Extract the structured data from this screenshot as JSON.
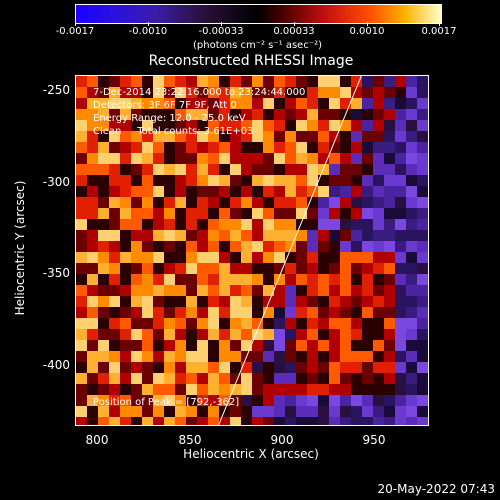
{
  "colorbar": {
    "ticks": [
      "-0.0017",
      "-0.0010",
      "-0.00033",
      "0.00033",
      "0.0010",
      "0.0017"
    ],
    "units": "(photons cm⁻² s⁻¹ asec⁻²)"
  },
  "chart_data": {
    "type": "heatmap",
    "title": "Reconstructed RHESSI Image",
    "xlabel": "Heliocentric X (arcsec)",
    "ylabel": "Heliocentric Y (arcsec)",
    "xlim": [
      790,
      980
    ],
    "ylim": [
      -433,
      -243
    ],
    "x_ticks": [
      "800",
      "850",
      "900",
      "950"
    ],
    "y_ticks": [
      "-250",
      "-300",
      "-350",
      "-400"
    ],
    "colorbar_range": [
      -0.0017,
      0.0017
    ],
    "limb_line": {
      "x": [
        867,
        944
      ],
      "y": [
        -433,
        -243
      ]
    },
    "annotations": {
      "time": "7-Dec-2014 23:22:16.000 to 23:24:44.000",
      "detectors": "Detectors: 3F 6F 7F 9F, Att 0",
      "energy": "Energy Range: 12.0 - 25.0 keV",
      "method": "Clean     Total counts: 3.61E+03",
      "peak": "Position of Peak = [792,-362]"
    }
  },
  "footer": {
    "timestamp": "20-May-2022 07:43"
  }
}
